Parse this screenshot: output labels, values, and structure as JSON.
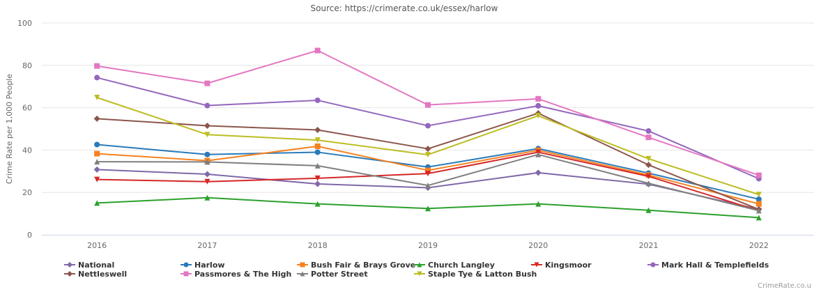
{
  "source_text": "Source: https://crimerate.co.uk/essex/harlow",
  "credit_text": "CrimeRate.co.u",
  "chart_data": {
    "type": "line",
    "title": "",
    "xlabel": "",
    "ylabel": "Crime Rate per 1,000 People",
    "categories": [
      "2016",
      "2017",
      "2018",
      "2019",
      "2020",
      "2021",
      "2022"
    ],
    "ylim": [
      0,
      100
    ],
    "yticks": [
      "0",
      "20",
      "40",
      "60",
      "80",
      "100"
    ],
    "grid": true,
    "legend_position": "bottom",
    "series": [
      {
        "name": "National",
        "color": "#8068a8",
        "marker": "diamond",
        "values": [
          30.8,
          28.6,
          24.0,
          22.2,
          29.3,
          23.9,
          12.0
        ]
      },
      {
        "name": "Harlow",
        "color": "#2a7ab9",
        "marker": "circle",
        "values": [
          42.6,
          37.9,
          39.0,
          32.0,
          40.7,
          29.1,
          16.8
        ]
      },
      {
        "name": "Bush Fair & Brays Grove",
        "color": "#f58220",
        "marker": "square",
        "values": [
          38.3,
          35.0,
          41.8,
          30.4,
          39.9,
          28.2,
          14.6
        ]
      },
      {
        "name": "Church Langley",
        "color": "#2ca02c",
        "marker": "triangle-up",
        "values": [
          15.0,
          17.5,
          14.6,
          12.4,
          14.6,
          11.6,
          8.1
        ]
      },
      {
        "name": "Kingsmoor",
        "color": "#d62728",
        "marker": "triangle-down",
        "values": [
          26.1,
          25.1,
          26.7,
          28.9,
          39.0,
          27.6,
          11.4
        ]
      },
      {
        "name": "Mark Hall & Templefields",
        "color": "#9467bd",
        "marker": "circle",
        "values": [
          74.2,
          61.0,
          63.5,
          51.5,
          60.9,
          49.0,
          26.5
        ]
      },
      {
        "name": "Nettleswell",
        "color": "#8c564b",
        "marker": "diamond",
        "values": [
          54.8,
          51.5,
          49.5,
          40.6,
          57.4,
          33.0,
          12.0
        ]
      },
      {
        "name": "Passmores & The High",
        "color": "#e377c2",
        "marker": "square",
        "values": [
          79.7,
          71.5,
          87.0,
          61.3,
          64.2,
          46.0,
          28.1
        ]
      },
      {
        "name": "Potter Street",
        "color": "#7f7f7f",
        "marker": "triangle-up",
        "values": [
          34.5,
          34.4,
          32.6,
          23.3,
          37.9,
          24.3,
          11.4
        ]
      },
      {
        "name": "Staple Tye & Latton Bush",
        "color": "#bcbd22",
        "marker": "triangle-down",
        "values": [
          64.8,
          47.3,
          44.7,
          37.8,
          56.2,
          35.9,
          19.0
        ]
      }
    ]
  }
}
